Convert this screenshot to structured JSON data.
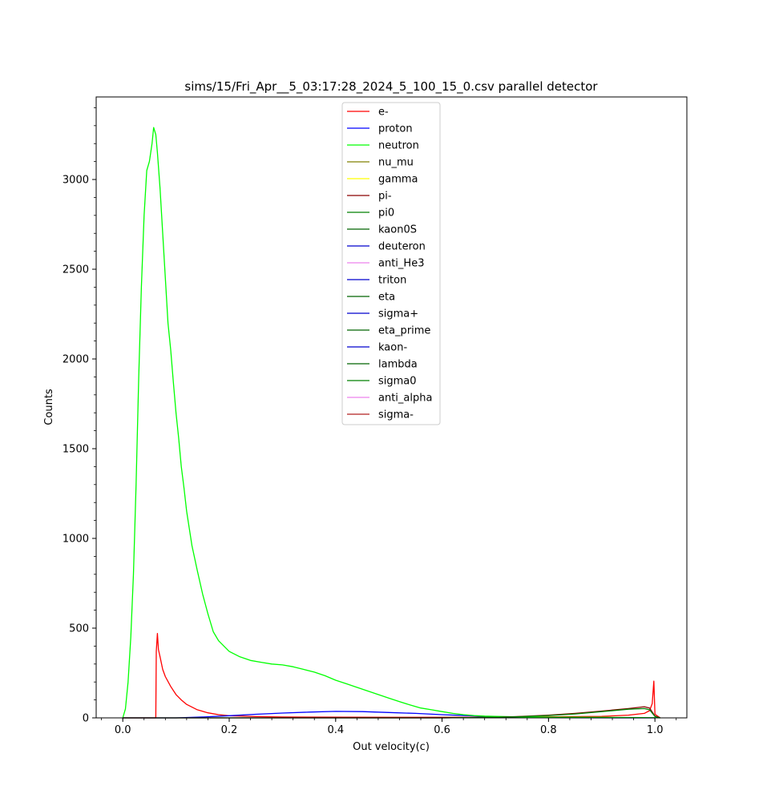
{
  "chart_data": {
    "type": "line",
    "title": "sims/15/Fri_Apr__5_03:17:28_2024_5_100_15_0.csv parallel detector",
    "xlabel": "Out velocity(c)",
    "ylabel": "Counts",
    "xlim": [
      -0.05,
      1.06
    ],
    "ylim": [
      0,
      3460
    ],
    "x_ticks": [
      0.0,
      0.2,
      0.4,
      0.6,
      0.8,
      1.0
    ],
    "x_tick_labels": [
      "0.0",
      "0.2",
      "0.4",
      "0.6",
      "0.8",
      "1.0"
    ],
    "y_ticks": [
      0,
      500,
      1000,
      1500,
      2000,
      2500,
      3000
    ],
    "y_tick_labels": [
      "0",
      "500",
      "1000",
      "1500",
      "2000",
      "2500",
      "3000"
    ],
    "legend_position": "top-center",
    "series": [
      {
        "name": "e-",
        "color": "#ff0000",
        "points": [
          [
            0.0,
            0
          ],
          [
            0.06,
            0
          ],
          [
            0.062,
            0
          ],
          [
            0.063,
            370
          ],
          [
            0.065,
            470
          ],
          [
            0.067,
            380
          ],
          [
            0.07,
            340
          ],
          [
            0.075,
            270
          ],
          [
            0.08,
            230
          ],
          [
            0.09,
            175
          ],
          [
            0.1,
            130
          ],
          [
            0.11,
            100
          ],
          [
            0.12,
            75
          ],
          [
            0.14,
            45
          ],
          [
            0.16,
            28
          ],
          [
            0.18,
            18
          ],
          [
            0.2,
            12
          ],
          [
            0.25,
            7
          ],
          [
            0.3,
            5
          ],
          [
            0.5,
            3
          ],
          [
            0.7,
            3
          ],
          [
            0.9,
            8
          ],
          [
            0.95,
            15
          ],
          [
            0.98,
            25
          ],
          [
            0.99,
            40
          ],
          [
            0.995,
            80
          ],
          [
            0.998,
            205
          ],
          [
            1.0,
            20
          ],
          [
            1.01,
            0
          ]
        ]
      },
      {
        "name": "proton",
        "color": "#0000ff",
        "points": [
          [
            0.0,
            0
          ],
          [
            0.1,
            0
          ],
          [
            0.15,
            5
          ],
          [
            0.2,
            12
          ],
          [
            0.25,
            20
          ],
          [
            0.3,
            27
          ],
          [
            0.35,
            32
          ],
          [
            0.4,
            36
          ],
          [
            0.45,
            35
          ],
          [
            0.5,
            30
          ],
          [
            0.55,
            25
          ],
          [
            0.6,
            18
          ],
          [
            0.65,
            12
          ],
          [
            0.7,
            6
          ],
          [
            0.75,
            3
          ],
          [
            0.8,
            1
          ],
          [
            1.0,
            0
          ]
        ]
      },
      {
        "name": "neutron",
        "color": "#00ff00",
        "points": [
          [
            0.0,
            0
          ],
          [
            0.005,
            50
          ],
          [
            0.01,
            200
          ],
          [
            0.015,
            450
          ],
          [
            0.02,
            800
          ],
          [
            0.025,
            1300
          ],
          [
            0.03,
            1900
          ],
          [
            0.035,
            2400
          ],
          [
            0.04,
            2800
          ],
          [
            0.045,
            3050
          ],
          [
            0.05,
            3100
          ],
          [
            0.055,
            3200
          ],
          [
            0.058,
            3290
          ],
          [
            0.062,
            3250
          ],
          [
            0.065,
            3150
          ],
          [
            0.07,
            2950
          ],
          [
            0.075,
            2700
          ],
          [
            0.08,
            2450
          ],
          [
            0.085,
            2200
          ],
          [
            0.09,
            2050
          ],
          [
            0.095,
            1870
          ],
          [
            0.1,
            1700
          ],
          [
            0.105,
            1560
          ],
          [
            0.11,
            1400
          ],
          [
            0.115,
            1280
          ],
          [
            0.12,
            1150
          ],
          [
            0.13,
            960
          ],
          [
            0.14,
            820
          ],
          [
            0.15,
            690
          ],
          [
            0.16,
            580
          ],
          [
            0.17,
            480
          ],
          [
            0.18,
            430
          ],
          [
            0.19,
            400
          ],
          [
            0.2,
            370
          ],
          [
            0.22,
            340
          ],
          [
            0.24,
            320
          ],
          [
            0.26,
            310
          ],
          [
            0.28,
            300
          ],
          [
            0.3,
            295
          ],
          [
            0.32,
            285
          ],
          [
            0.34,
            270
          ],
          [
            0.36,
            255
          ],
          [
            0.38,
            235
          ],
          [
            0.4,
            210
          ],
          [
            0.42,
            190
          ],
          [
            0.44,
            170
          ],
          [
            0.46,
            150
          ],
          [
            0.48,
            130
          ],
          [
            0.5,
            110
          ],
          [
            0.52,
            90
          ],
          [
            0.54,
            72
          ],
          [
            0.56,
            55
          ],
          [
            0.58,
            45
          ],
          [
            0.6,
            35
          ],
          [
            0.62,
            25
          ],
          [
            0.64,
            18
          ],
          [
            0.66,
            13
          ],
          [
            0.68,
            10
          ],
          [
            0.7,
            8
          ],
          [
            0.75,
            5
          ],
          [
            0.8,
            4
          ],
          [
            0.9,
            3
          ],
          [
            1.0,
            1
          ],
          [
            1.01,
            0
          ]
        ]
      },
      {
        "name": "nu_mu",
        "color": "#808000",
        "points": []
      },
      {
        "name": "gamma",
        "color": "#ffff00",
        "points": []
      },
      {
        "name": "pi-",
        "color": "#8b0000",
        "points": [
          [
            0.0,
            0
          ],
          [
            0.6,
            0
          ],
          [
            0.7,
            3
          ],
          [
            0.75,
            8
          ],
          [
            0.8,
            15
          ],
          [
            0.85,
            25
          ],
          [
            0.9,
            38
          ],
          [
            0.95,
            52
          ],
          [
            0.98,
            62
          ],
          [
            0.99,
            55
          ],
          [
            1.0,
            10
          ],
          [
            1.01,
            0
          ]
        ]
      },
      {
        "name": "pi0",
        "color": "#008000",
        "points": [
          [
            0.0,
            0
          ],
          [
            0.6,
            0
          ],
          [
            0.7,
            3
          ],
          [
            0.75,
            7
          ],
          [
            0.8,
            13
          ],
          [
            0.85,
            22
          ],
          [
            0.9,
            35
          ],
          [
            0.95,
            48
          ],
          [
            0.98,
            52
          ],
          [
            0.99,
            45
          ],
          [
            1.0,
            8
          ],
          [
            1.01,
            0
          ]
        ]
      },
      {
        "name": "kaon0S",
        "color": "#006400",
        "points": []
      },
      {
        "name": "deuteron",
        "color": "#0000cd",
        "points": []
      },
      {
        "name": "anti_He3",
        "color": "#ee82ee",
        "points": []
      },
      {
        "name": "triton",
        "color": "#0000cd",
        "points": []
      },
      {
        "name": "eta",
        "color": "#006400",
        "points": []
      },
      {
        "name": "sigma+",
        "color": "#0000cd",
        "points": []
      },
      {
        "name": "eta_prime",
        "color": "#006400",
        "points": []
      },
      {
        "name": "kaon-",
        "color": "#0000cd",
        "points": []
      },
      {
        "name": "lambda",
        "color": "#006400",
        "points": []
      },
      {
        "name": "sigma0",
        "color": "#008000",
        "points": []
      },
      {
        "name": "anti_alpha",
        "color": "#ee82ee",
        "points": []
      },
      {
        "name": "sigma-",
        "color": "#b22222",
        "points": []
      }
    ]
  }
}
